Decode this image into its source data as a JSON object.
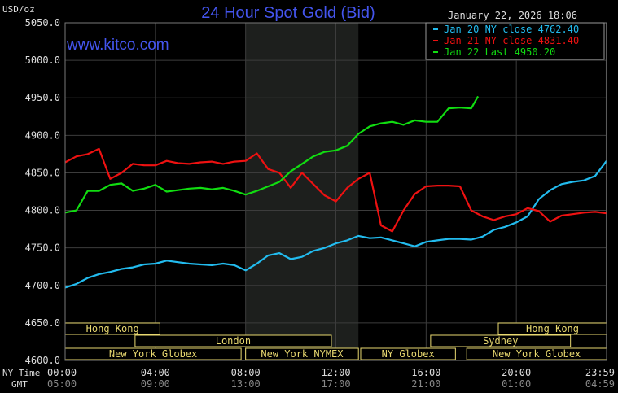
{
  "chart_data": {
    "type": "line",
    "title": "24 Hour Spot Gold (Bid)",
    "unit_label": "USD/oz",
    "brand": "www.kitco.com",
    "timestamp": "January 22, 2026 18:06",
    "ylim": [
      4600,
      5050
    ],
    "y_ticks": [
      "5050.0",
      "5000.0",
      "4950.0",
      "4900.0",
      "4850.0",
      "4800.0",
      "4750.0",
      "4700.0",
      "4650.0",
      "4600.0"
    ],
    "y_tick_values": [
      5050,
      5000,
      4950,
      4900,
      4850,
      4800,
      4750,
      4700,
      4650,
      4600
    ],
    "xlim": [
      0,
      24
    ],
    "x_row_labels": {
      "ny": "NY Time",
      "gmt": "GMT"
    },
    "x_ticks": [
      {
        "hour": 0,
        "ny": "00:00",
        "gmt": "05:00"
      },
      {
        "hour": 4,
        "ny": "04:00",
        "gmt": "09:00"
      },
      {
        "hour": 8,
        "ny": "08:00",
        "gmt": "13:00"
      },
      {
        "hour": 12,
        "ny": "12:00",
        "gmt": "17:00"
      },
      {
        "hour": 16,
        "ny": "16:00",
        "gmt": "21:00"
      },
      {
        "hour": 20,
        "ny": "20:00",
        "gmt": "01:00"
      },
      {
        "hour": 23.98,
        "ny": "23:59",
        "gmt": "04:59"
      }
    ],
    "shaded_session": {
      "start_hour": 8,
      "end_hour": 13
    },
    "legend": [
      {
        "label": "Jan 20 NY close 4762.40",
        "color": "#22bbee"
      },
      {
        "label": "Jan 21 NY close 4831.40",
        "color": "#ee1111"
      },
      {
        "label": "Jan 22 Last 4950.20",
        "color": "#11dd11"
      }
    ],
    "series": [
      {
        "color": "#22bbee",
        "x": [
          0,
          0.5,
          1,
          1.5,
          2,
          2.5,
          3,
          3.5,
          4,
          4.5,
          5,
          5.5,
          6,
          6.5,
          7,
          7.5,
          8,
          8.5,
          9,
          9.5,
          10,
          10.5,
          11,
          11.5,
          12,
          12.5,
          13,
          13.5,
          14,
          14.5,
          15,
          15.5,
          16,
          16.5,
          17,
          17.5,
          18,
          18.5,
          19,
          19.5,
          20,
          20.5,
          21,
          21.5,
          22,
          22.5,
          23,
          23.5,
          24
        ],
        "values": [
          4697,
          4702,
          4710,
          4715,
          4718,
          4722,
          4724,
          4728,
          4729,
          4733,
          4731,
          4729,
          4728,
          4727,
          4729,
          4727,
          4720,
          4729,
          4740,
          4743,
          4735,
          4738,
          4746,
          4750,
          4756,
          4760,
          4766,
          4763,
          4764,
          4760,
          4756,
          4752,
          4758,
          4760,
          4762,
          4762,
          4761,
          4765,
          4774,
          4778,
          4784,
          4792,
          4815,
          4827,
          4835,
          4838,
          4840,
          4846,
          4866
        ]
      },
      {
        "color": "#ee1111",
        "x": [
          0,
          0.5,
          1,
          1.5,
          2,
          2.5,
          3,
          3.5,
          4,
          4.5,
          5,
          5.5,
          6,
          6.5,
          7,
          7.5,
          8,
          8.5,
          9,
          9.5,
          10,
          10.5,
          11,
          11.5,
          12,
          12.5,
          13,
          13.5,
          14,
          14.5,
          15,
          15.5,
          16,
          16.5,
          17,
          17.5,
          18,
          18.5,
          19,
          19.5,
          20,
          20.5,
          21,
          21.5,
          22,
          22.5,
          23,
          23.5,
          24
        ],
        "values": [
          4864,
          4872,
          4875,
          4882,
          4842,
          4850,
          4862,
          4860,
          4860,
          4866,
          4863,
          4862,
          4864,
          4865,
          4862,
          4865,
          4866,
          4876,
          4855,
          4850,
          4830,
          4850,
          4835,
          4820,
          4812,
          4830,
          4842,
          4850,
          4780,
          4772,
          4800,
          4822,
          4832,
          4833,
          4833,
          4832,
          4800,
          4792,
          4787,
          4792,
          4795,
          4803,
          4799,
          4785,
          4793,
          4795,
          4797,
          4798,
          4796
        ]
      },
      {
        "color": "#11dd11",
        "x": [
          0,
          0.5,
          1,
          1.5,
          2,
          2.5,
          3,
          3.5,
          4,
          4.5,
          5,
          5.5,
          6,
          6.5,
          7,
          7.5,
          8,
          8.5,
          9,
          9.5,
          10,
          10.5,
          11,
          11.5,
          12,
          12.5,
          13,
          13.5,
          14,
          14.5,
          15,
          15.5,
          16,
          16.5,
          17,
          17.5,
          18,
          18.3
        ],
        "values": [
          4797,
          4800,
          4826,
          4826,
          4834,
          4836,
          4826,
          4829,
          4834,
          4825,
          4827,
          4829,
          4830,
          4828,
          4830,
          4826,
          4821,
          4826,
          4832,
          4838,
          4852,
          4862,
          4872,
          4878,
          4880,
          4886,
          4902,
          4912,
          4916,
          4918,
          4914,
          4920,
          4918,
          4918,
          4936,
          4937,
          4936,
          4952
        ]
      }
    ]
  },
  "sessions": [
    {
      "label": "Hong Kong",
      "row": 0,
      "start_hour": 0,
      "end_hour": 4.2
    },
    {
      "label": "London",
      "row": 1,
      "start_hour": 3.1,
      "end_hour": 11.8
    },
    {
      "label": "New York Globex",
      "row": 2,
      "start_hour": 0,
      "end_hour": 7.8
    },
    {
      "label": "New York NYMEX",
      "row": 2,
      "start_hour": 8.0,
      "end_hour": 13.0
    },
    {
      "label": "NY Globex",
      "row": 2,
      "start_hour": 13.1,
      "end_hour": 17.3
    },
    {
      "label": "New York Globex",
      "row": 2,
      "start_hour": 17.8,
      "end_hour": 24
    },
    {
      "label": "Hong Kong",
      "row": 0,
      "start_hour": 19.2,
      "end_hour": 24
    },
    {
      "label": "Sydney",
      "row": 1,
      "start_hour": 16.2,
      "end_hour": 22.4
    }
  ]
}
